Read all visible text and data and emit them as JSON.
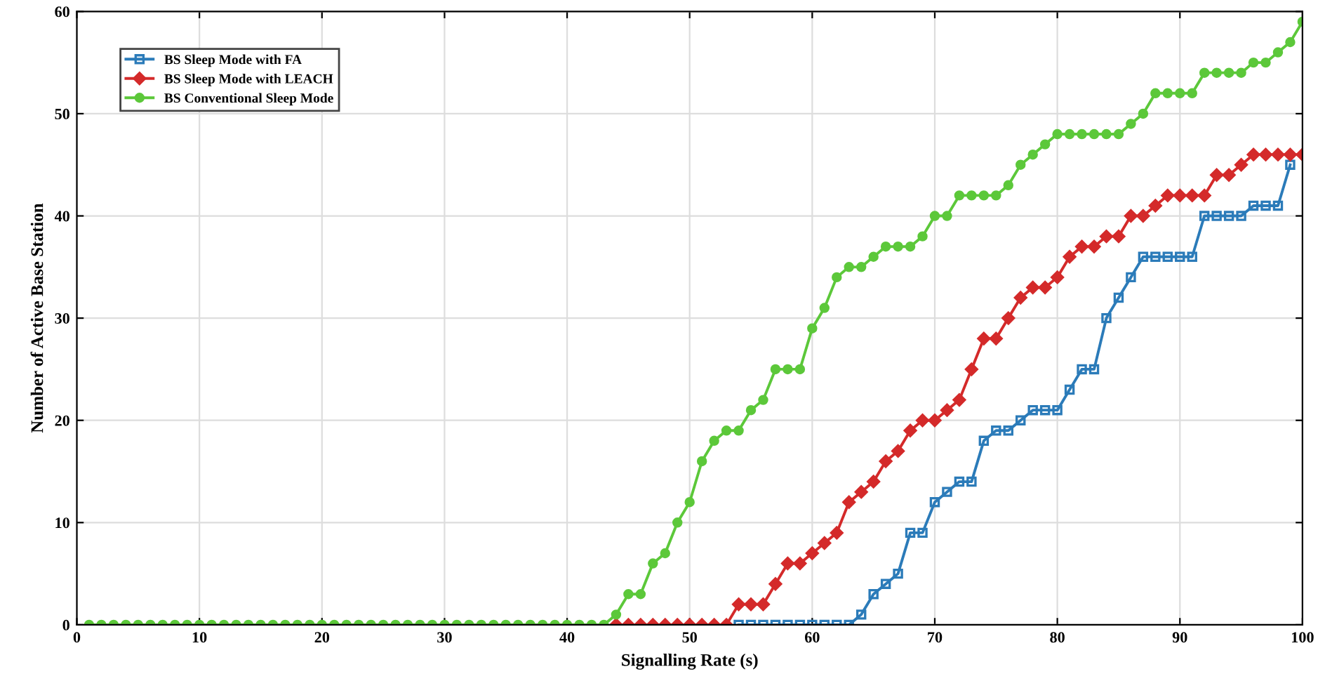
{
  "chart_data": {
    "type": "line",
    "xlabel": "Signalling Rate (s)",
    "ylabel": "Number of Active Base Station",
    "x": [
      1,
      2,
      3,
      4,
      5,
      6,
      7,
      8,
      9,
      10,
      11,
      12,
      13,
      14,
      15,
      16,
      17,
      18,
      19,
      20,
      21,
      22,
      23,
      24,
      25,
      26,
      27,
      28,
      29,
      30,
      31,
      32,
      33,
      34,
      35,
      36,
      37,
      38,
      39,
      40,
      41,
      42,
      43,
      44,
      45,
      46,
      47,
      48,
      49,
      50,
      51,
      52,
      53,
      54,
      55,
      56,
      57,
      58,
      59,
      60,
      61,
      62,
      63,
      64,
      65,
      66,
      67,
      68,
      69,
      70,
      71,
      72,
      73,
      74,
      75,
      76,
      77,
      78,
      79,
      80,
      81,
      82,
      83,
      84,
      85,
      86,
      87,
      88,
      89,
      90,
      91,
      92,
      93,
      94,
      95,
      96,
      97,
      98,
      99,
      100
    ],
    "xlim": [
      0,
      100
    ],
    "xticks": [
      0,
      10,
      20,
      30,
      40,
      50,
      60,
      70,
      80,
      90,
      100
    ],
    "ylim": [
      0,
      60
    ],
    "yticks": [
      0,
      10,
      20,
      30,
      40,
      50,
      60
    ],
    "grid": true,
    "legend": "top left",
    "series": [
      {
        "name": "BS Sleep Mode with FA",
        "color": "#2b7bb9",
        "marker": "square",
        "values": [
          null,
          null,
          null,
          null,
          null,
          null,
          null,
          null,
          null,
          null,
          null,
          null,
          null,
          null,
          null,
          null,
          null,
          null,
          null,
          null,
          null,
          null,
          null,
          null,
          null,
          null,
          null,
          null,
          null,
          null,
          null,
          null,
          null,
          null,
          null,
          null,
          null,
          null,
          null,
          null,
          null,
          null,
          null,
          null,
          null,
          null,
          null,
          null,
          null,
          null,
          null,
          null,
          null,
          0,
          0,
          0,
          0,
          0,
          0,
          0,
          0,
          0,
          0,
          1,
          3,
          4,
          5,
          9,
          9,
          12,
          13,
          14,
          14,
          18,
          19,
          19,
          20,
          21,
          21,
          21,
          23,
          25,
          25,
          30,
          32,
          34,
          36,
          36,
          36,
          36,
          36,
          40,
          40,
          40,
          40,
          41,
          41,
          41,
          45,
          null
        ]
      },
      {
        "name": "BS Sleep Mode with LEACH",
        "color": "#d42a2a",
        "marker": "diamond",
        "values": [
          null,
          null,
          null,
          null,
          null,
          null,
          null,
          null,
          null,
          null,
          null,
          null,
          null,
          null,
          null,
          null,
          null,
          null,
          null,
          null,
          null,
          null,
          null,
          null,
          null,
          null,
          null,
          null,
          null,
          null,
          null,
          null,
          null,
          null,
          null,
          null,
          null,
          null,
          null,
          null,
          null,
          null,
          null,
          0,
          0,
          0,
          0,
          0,
          0,
          0,
          0,
          0,
          0,
          2,
          2,
          2,
          4,
          6,
          6,
          7,
          8,
          9,
          12,
          13,
          14,
          16,
          17,
          19,
          20,
          20,
          21,
          22,
          25,
          28,
          28,
          30,
          32,
          33,
          33,
          34,
          36,
          37,
          37,
          38,
          38,
          40,
          40,
          41,
          42,
          42,
          42,
          42,
          44,
          44,
          45,
          46,
          46,
          46,
          46,
          46
        ]
      },
      {
        "name": "BS Conventional Sleep Mode",
        "color": "#5cc83a",
        "marker": "circle",
        "values": [
          0,
          0,
          0,
          0,
          0,
          0,
          0,
          0,
          0,
          0,
          0,
          0,
          0,
          0,
          0,
          0,
          0,
          0,
          0,
          0,
          0,
          0,
          0,
          0,
          0,
          0,
          0,
          0,
          0,
          0,
          0,
          0,
          0,
          0,
          0,
          0,
          0,
          0,
          0,
          0,
          0,
          0,
          0,
          1,
          3,
          3,
          6,
          7,
          10,
          12,
          16,
          18,
          19,
          19,
          21,
          22,
          25,
          25,
          25,
          29,
          31,
          34,
          35,
          35,
          36,
          37,
          37,
          37,
          38,
          40,
          40,
          42,
          42,
          42,
          42,
          43,
          45,
          46,
          47,
          48,
          48,
          48,
          48,
          48,
          48,
          49,
          50,
          52,
          52,
          52,
          52,
          54,
          54,
          54,
          54,
          55,
          55,
          56,
          57,
          59
        ]
      }
    ]
  }
}
